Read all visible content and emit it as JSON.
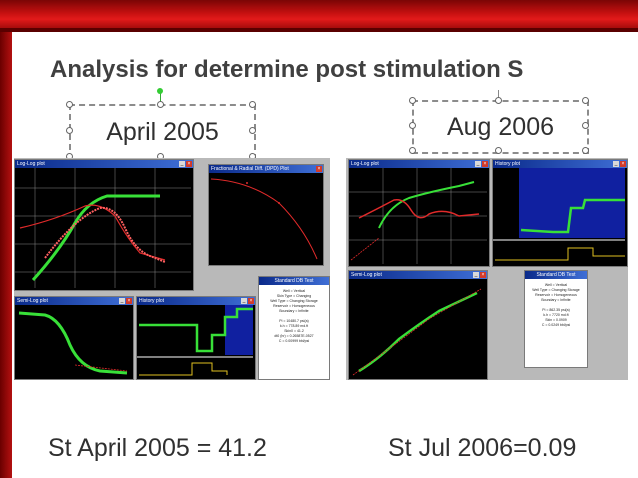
{
  "slide": {
    "title": "Analysis for determine post stimulation  S",
    "left_label": "April 2005",
    "right_label": "Aug 2006",
    "left_result": "St April 2005 = 41.2",
    "right_result": "St Jul  2006=0.09"
  },
  "left_windows": {
    "loglog": "Log-Log plot",
    "fractional": "Fractional & Radial Diff. (DPD) Plot",
    "semilog": "Semi-Log plot",
    "history": "History plot",
    "results_title": "Standard DB Test",
    "results_lines": [
      "Well = Vertical",
      "Skin Type = Changing",
      "Well Type = Changing Storage",
      "Reservoir = Homogeneous",
      "Boundary = Infinite",
      "",
      "Pi = 10480.7 psi(a)",
      "k.h = 778.89 md.ft",
      "Skin0 = 41.2",
      "dt0 (hr) = 0.26587E-0527",
      "C = 0.00999 bbl/psi"
    ]
  },
  "right_windows": {
    "loglog": "Log-Log plot",
    "history": "History plot",
    "semilog": "Semi-Log plot",
    "results_title": "Standard DB Test",
    "results_lines": [
      "Well = Vertical",
      "Well Type = Changing Storage",
      "Reservoir = Homogeneous",
      "Boundary = Infinite",
      "",
      "Pi = 862.35 psi(a)",
      "k.h = 7720 md.ft",
      "Skin = 0.0909",
      "C = 0.0249 bbl/psi"
    ]
  },
  "colors": {
    "banner": "#c41010",
    "plot_bg": "#000000",
    "green_curve": "#38e038",
    "red_curve": "#e02a2a",
    "blue_panel": "#1020a0",
    "yellow_line": "#e0c020"
  }
}
